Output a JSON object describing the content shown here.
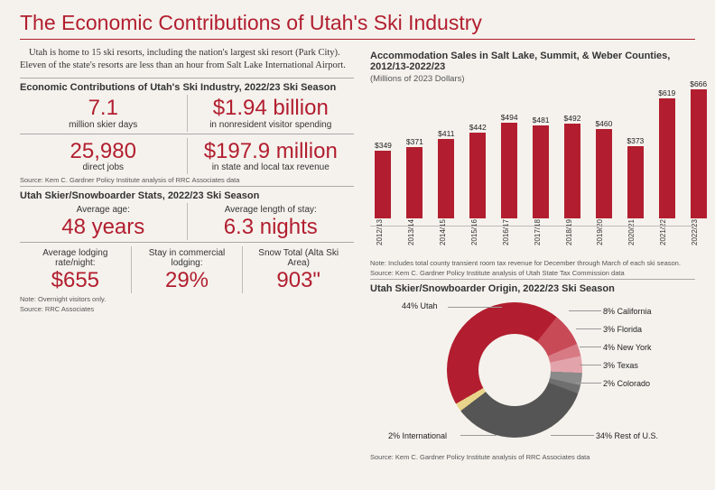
{
  "title": "The Economic Contributions of Utah's Ski Industry",
  "intro": "Utah is home to 15 ski resorts, including the nation's largest ski resort (Park City). Eleven of the state's resorts are less than an hour from Salt Lake International Airport.",
  "econ": {
    "heading": "Economic Contributions of Utah's Ski Industry, 2022/23 Ski Season",
    "r1a_num": "7.1",
    "r1a_lab": "million skier days",
    "r1b_num": "$1.94 billion",
    "r1b_lab": "in nonresident visitor spending",
    "r2a_num": "25,980",
    "r2a_lab": "direct jobs",
    "r2b_num": "$197.9 million",
    "r2b_lab": "in state and local tax revenue",
    "source": "Source: Kem C. Gardner Policy Institute analysis of RRC Associates data"
  },
  "stats": {
    "heading": "Utah Skier/Snowboarder Stats, 2022/23 Ski Season",
    "a_top": "Average age:",
    "a_num": "48 years",
    "b_top": "Average length of stay:",
    "b_num": "6.3 nights",
    "c_top": "Average lodging rate/night:",
    "c_num": "$655",
    "d_top": "Stay in commercial lodging:",
    "d_num": "29%",
    "e_top": "Snow Total (Alta Ski Area)",
    "e_num": "903\"",
    "note1": "Note: Overnight visitors only.",
    "note2": "Source: RRC Associates"
  },
  "barChart": {
    "heading": "Accommodation Sales in Salt Lake, Summit, & Weber Counties, 2012/13-2022/23",
    "sub": "(Millions of 2023 Dollars)",
    "categories": [
      "2012/13",
      "2013/14",
      "2014/15",
      "2015/16",
      "2016/17",
      "2017/18",
      "2018/19",
      "2019/20",
      "2020/21",
      "2021/22",
      "2022/23"
    ],
    "values": [
      349,
      371,
      411,
      442,
      494,
      481,
      492,
      460,
      373,
      619,
      666
    ],
    "ymax": 700,
    "bar_color": "#b21e2f",
    "note": "Note: Includes total county transient room tax revenue for December through March of each ski season.",
    "source": "Source: Kem C. Gardner Policy Institute analysis of Utah State Tax Commission data"
  },
  "donut": {
    "heading": "Utah Skier/Snowboarder Origin, 2022/23 Ski Season",
    "slices": [
      {
        "label": "44% Utah",
        "pct": 44,
        "color": "#b21e2f"
      },
      {
        "label": "8% California",
        "pct": 8,
        "color": "#c94a57"
      },
      {
        "label": "3% Florida",
        "pct": 3,
        "color": "#d77a84"
      },
      {
        "label": "4% New York",
        "pct": 4,
        "color": "#e3a3aa"
      },
      {
        "label": "3% Texas",
        "pct": 3,
        "color": "#8a8a8a"
      },
      {
        "label": "2% Colorado",
        "pct": 2,
        "color": "#6f6f6f"
      },
      {
        "label": "34% Rest of U.S.",
        "pct": 34,
        "color": "#555555"
      },
      {
        "label": "2% International",
        "pct": 2,
        "color": "#e8d48a"
      }
    ],
    "source": "Source: Kem C. Gardner Policy Institute analysis of RRC Associates data"
  }
}
